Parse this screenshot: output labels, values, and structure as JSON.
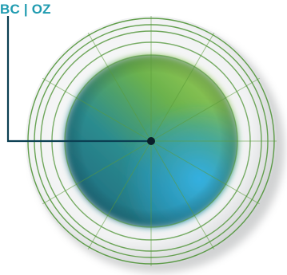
{
  "label": {
    "text": "BC | OZ"
  },
  "colors": {
    "label": "#1f9bb0",
    "leader_line": "#0b3f52",
    "marker": "#0a1f2a",
    "ring_lines": "#5a9b3a",
    "zone_green": "#8cc34a",
    "zone_teal": "#2b8a8f",
    "zone_blue": "#2aa3d8",
    "rim": "#e6e7e8"
  },
  "icons": {
    "marker": "center-dot-icon"
  }
}
